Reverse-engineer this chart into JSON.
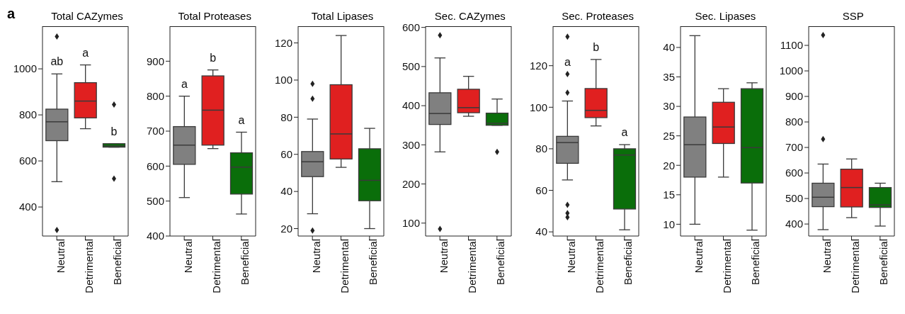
{
  "chart_data": [
    {
      "type": "box",
      "title": "Total CAZymes",
      "categories": [
        "Neutral",
        "Detrimental",
        "Beneficial"
      ],
      "colors": [
        "#808080",
        "#e02020",
        "#0a6e0a"
      ],
      "ylim": [
        274,
        1185
      ],
      "yticks": [
        400,
        600,
        800,
        1000
      ],
      "boxes": [
        {
          "low": 510,
          "q1": 688,
          "median": 770,
          "q3": 825,
          "high": 978,
          "outliers": [
            1140,
            300
          ]
        },
        {
          "low": 740,
          "q1": 787,
          "median": 860,
          "q3": 940,
          "high": 1017
        },
        {
          "low": 660,
          "q1": 660,
          "median": 665,
          "q3": 675,
          "high": 675,
          "outliers": [
            845,
            523
          ]
        }
      ],
      "annotations": [
        "a",
        "ab",
        "a",
        "b"
      ]
    },
    {
      "type": "box",
      "title": "Total Proteases",
      "categories": [
        "Neutral",
        "Detrimental",
        "Beneficial"
      ],
      "colors": [
        "#808080",
        "#e02020",
        "#0a6e0a"
      ],
      "ylim": [
        400,
        1000
      ],
      "yticks": [
        400,
        500,
        600,
        700,
        800,
        900
      ],
      "boxes": [
        {
          "low": 510,
          "q1": 605,
          "median": 660,
          "q3": 713,
          "high": 800
        },
        {
          "low": 650,
          "q1": 660,
          "median": 760,
          "q3": 858,
          "high": 875
        },
        {
          "low": 463,
          "q1": 520,
          "median": 597,
          "q3": 638,
          "high": 697
        }
      ],
      "annotations": [
        "a",
        "b",
        "a"
      ]
    },
    {
      "type": "box",
      "title": "Total Lipases",
      "categories": [
        "Neutral",
        "Detrimental",
        "Beneficial"
      ],
      "colors": [
        "#808080",
        "#e02020",
        "#0a6e0a"
      ],
      "ylim": [
        16,
        129
      ],
      "yticks": [
        20,
        40,
        60,
        80,
        100,
        120
      ],
      "boxes": [
        {
          "low": 28,
          "q1": 48,
          "median": 56,
          "q3": 61.5,
          "high": 79,
          "outliers": [
            98,
            90,
            19
          ]
        },
        {
          "low": 53,
          "q1": 57.5,
          "median": 71,
          "q3": 97.5,
          "high": 124
        },
        {
          "low": 20,
          "q1": 35,
          "median": 46,
          "q3": 63,
          "high": 74
        }
      ]
    },
    {
      "type": "box",
      "title": "Sec. CAZymes",
      "categories": [
        "Neutral",
        "Detrimental",
        "Beneficial"
      ],
      "colors": [
        "#808080",
        "#e02020",
        "#0a6e0a"
      ],
      "ylim": [
        67,
        603
      ],
      "yticks": [
        100,
        200,
        300,
        400,
        500,
        600
      ],
      "boxes": [
        {
          "low": 282,
          "q1": 352,
          "median": 380,
          "q3": 433,
          "high": 522,
          "outliers": [
            580,
            85
          ]
        },
        {
          "low": 373,
          "q1": 382,
          "median": 395,
          "q3": 442,
          "high": 475
        },
        {
          "low": 350,
          "q1": 350,
          "median": 355,
          "q3": 381,
          "high": 417,
          "outliers": [
            282
          ]
        }
      ]
    },
    {
      "type": "box",
      "title": "Sec. Proteases",
      "categories": [
        "Neutral",
        "Detrimental",
        "Beneficial"
      ],
      "colors": [
        "#808080",
        "#e02020",
        "#0a6e0a"
      ],
      "ylim": [
        38,
        139
      ],
      "yticks": [
        40,
        60,
        80,
        100,
        120
      ],
      "boxes": [
        {
          "low": 65,
          "q1": 73,
          "median": 83,
          "q3": 86,
          "high": 103,
          "outliers": [
            134,
            116,
            107,
            53,
            49,
            47
          ]
        },
        {
          "low": 91,
          "q1": 95,
          "median": 98.5,
          "q3": 109,
          "high": 123
        },
        {
          "low": 41,
          "q1": 51,
          "median": 77,
          "q3": 80,
          "high": 82
        }
      ],
      "annotations": [
        "a",
        "b",
        "a"
      ]
    },
    {
      "type": "box",
      "title": "Sec. Lipases",
      "categories": [
        "Neutral",
        "Detrimental",
        "Beneficial"
      ],
      "colors": [
        "#808080",
        "#e02020",
        "#0a6e0a"
      ],
      "ylim": [
        8,
        43.6
      ],
      "yticks": [
        10,
        15,
        20,
        25,
        30,
        35,
        40
      ],
      "boxes": [
        {
          "low": 10,
          "q1": 18,
          "median": 23.5,
          "q3": 28.2,
          "high": 42
        },
        {
          "low": 18,
          "q1": 23.7,
          "median": 26.5,
          "q3": 30.7,
          "high": 33
        },
        {
          "low": 9,
          "q1": 17,
          "median": 23,
          "q3": 33,
          "high": 34
        }
      ]
    },
    {
      "type": "box",
      "title": "SSP",
      "categories": [
        "Neutral",
        "Detrimental",
        "Beneficial"
      ],
      "colors": [
        "#808080",
        "#e02020",
        "#0a6e0a"
      ],
      "ylim": [
        353,
        1175
      ],
      "yticks": [
        400,
        500,
        600,
        700,
        800,
        900,
        1000,
        1100
      ],
      "boxes": [
        {
          "low": 378,
          "q1": 468,
          "median": 505,
          "q3": 560,
          "high": 635,
          "outliers": [
            1140,
            733
          ]
        },
        {
          "low": 425,
          "q1": 467,
          "median": 543,
          "q3": 615,
          "high": 655
        },
        {
          "low": 392,
          "q1": 465,
          "median": 475,
          "q3": 543,
          "high": 560
        }
      ]
    }
  ]
}
